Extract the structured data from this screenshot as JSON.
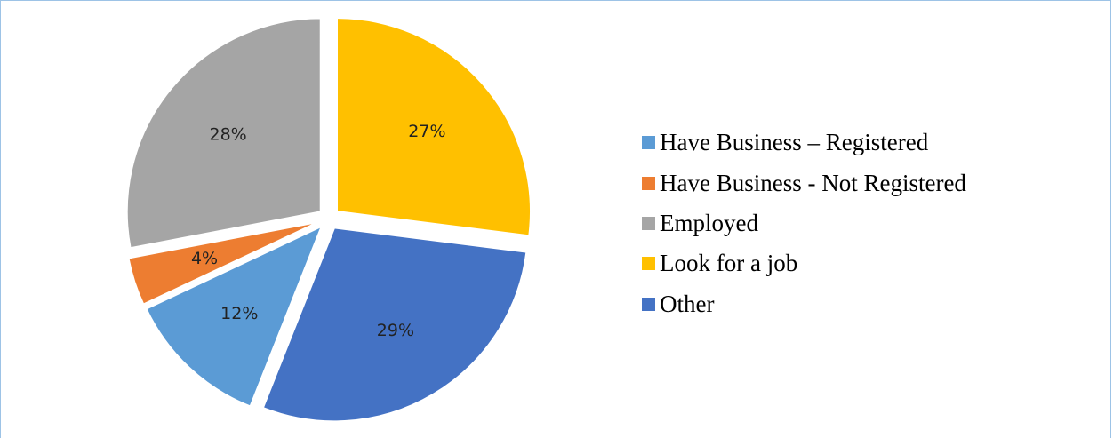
{
  "chart_data": {
    "type": "pie",
    "exploded": true,
    "start_angle_deg": 0,
    "direction": "clockwise",
    "slices": [
      {
        "label": "Look for a job",
        "value": 27,
        "value_label": "27%",
        "color": "#ffc000"
      },
      {
        "label": "Other",
        "value": 29,
        "value_label": "29%",
        "color": "#4472c4"
      },
      {
        "label": "Have Business – Registered",
        "value": 12,
        "value_label": "12%",
        "color": "#5b9bd5"
      },
      {
        "label": "Have Business - Not Registered",
        "value": 4,
        "value_label": "4%",
        "color": "#ed7d31"
      },
      {
        "label": "Employed",
        "value": 28,
        "value_label": "28%",
        "color": "#a5a5a5"
      }
    ],
    "legend": {
      "position": "right",
      "items": [
        {
          "label": "Have Business – Registered",
          "color": "#5b9bd5"
        },
        {
          "label": "Have Business - Not Registered",
          "color": "#ed7d31"
        },
        {
          "label": "Employed",
          "color": "#a5a5a5"
        },
        {
          "label": "Look for a job",
          "color": "#ffc000"
        },
        {
          "label": "Other",
          "color": "#4472c4"
        }
      ]
    }
  }
}
